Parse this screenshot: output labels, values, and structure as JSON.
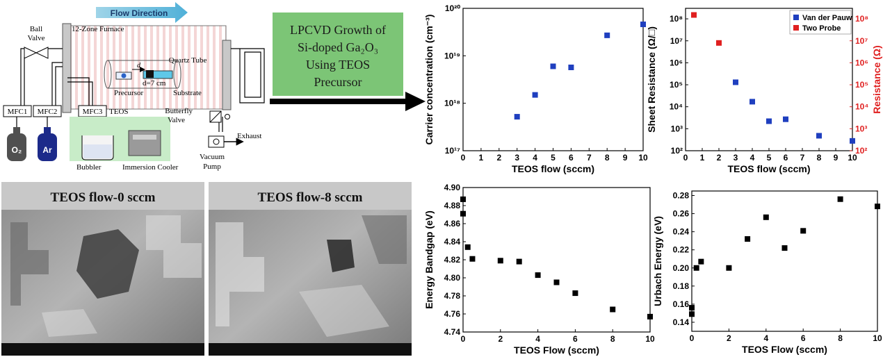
{
  "schematic": {
    "flow_direction": "Flow Direction",
    "furnace": "12-Zone Furnace",
    "quartz_tube": "Quartz Tube",
    "ball_valve_1": "Ball",
    "ball_valve_2": "Valve",
    "precursor": "Precursor",
    "substrate": "Substrate",
    "distance": "d=7 cm",
    "d_label": "d",
    "mfc1": "MFC1",
    "mfc2": "MFC2",
    "mfc3": "MFC3",
    "teos": "TEOS",
    "o2": "O₂",
    "ar": "Ar",
    "bubbler": "Bubbler",
    "immersion_cooler": "Immersion Cooler",
    "butterfly_1": "Butterfly",
    "butterfly_2": "Valve",
    "exhaust": "Exhaust",
    "vacuum_1": "Vacuum",
    "vacuum_2": "Pump"
  },
  "title_box": {
    "line1": "LPCVD Growth of",
    "line2": "Si-doped Ga₂O₃",
    "line3": "Using TEOS",
    "line4": "Precursor",
    "color": "#7cc576"
  },
  "sem": [
    {
      "label": "TEOS flow-0 sccm"
    },
    {
      "label": "TEOS flow-8 sccm"
    }
  ],
  "chart_data": [
    {
      "type": "scatter",
      "id": "carrier",
      "xlabel": "TEOS flow (sccm)",
      "ylabel": "Carrier concentration (cm⁻³)",
      "xlim": [
        0,
        10
      ],
      "ylim": [
        1e+17,
        1e+20
      ],
      "yscale": "log",
      "xticks": [
        "0",
        "1",
        "2",
        "3",
        "4",
        "5",
        "6",
        "7",
        "8",
        "9",
        "10"
      ],
      "yticks": [
        "10¹⁷",
        "10¹⁸",
        "10¹⁹",
        "10²⁰"
      ],
      "color": "#1f3fbf",
      "x": [
        3,
        4,
        5,
        6,
        8,
        10
      ],
      "y": [
        5.2e+17,
        1.5e+18,
        6e+18,
        5.7e+18,
        2.7e+19,
        4.6e+19
      ]
    },
    {
      "type": "scatter",
      "id": "resistance",
      "xlabel": "TEOS flow (sccm)",
      "ylabel": "Sheet Resistance (Ω/□)",
      "ylabel_right": "Resistance (Ω)",
      "xlim": [
        0,
        10
      ],
      "ylim": [
        100,
        300000000.0
      ],
      "yscale": "log",
      "xticks": [
        "0",
        "1",
        "2",
        "3",
        "4",
        "5",
        "6",
        "7",
        "8",
        "9",
        "10"
      ],
      "yticks": [
        "10²",
        "10³",
        "10⁴",
        "10⁵",
        "10⁶",
        "10⁷",
        "10⁸"
      ],
      "legend_position": "top-right",
      "series": [
        {
          "name": "Van der Pauw",
          "color": "#1f3fbf",
          "x": [
            3,
            4,
            5,
            6,
            8,
            10
          ],
          "y": [
            130000.0,
            17000.0,
            2200.0,
            2700.0,
            480.0,
            280.0
          ]
        },
        {
          "name": "Two Probe",
          "color": "#e02020",
          "x": [
            0.5,
            2
          ],
          "y": [
            150000000.0,
            8000000.0
          ]
        }
      ]
    },
    {
      "type": "scatter",
      "id": "bandgap",
      "xlabel": "TEOS Flow (sccm)",
      "ylabel": "Energy Bandgap (eV)",
      "xlim": [
        0,
        10
      ],
      "ylim": [
        4.74,
        4.9
      ],
      "xticks": [
        "0",
        "2",
        "4",
        "6",
        "8",
        "10"
      ],
      "yticks": [
        "4.74",
        "4.76",
        "4.78",
        "4.80",
        "4.82",
        "4.84",
        "4.86",
        "4.88",
        "4.90"
      ],
      "color": "#000000",
      "x": [
        0,
        0,
        0.25,
        0.5,
        2,
        3,
        4,
        5,
        6,
        8,
        10
      ],
      "y": [
        4.887,
        4.871,
        4.834,
        4.821,
        4.819,
        4.818,
        4.803,
        4.795,
        4.783,
        4.765,
        4.757
      ]
    },
    {
      "type": "scatter",
      "id": "urbach",
      "xlabel": "TEOS Flow (sccm)",
      "ylabel": "Urbach Energy (eV)",
      "xlim": [
        0,
        10
      ],
      "ylim": [
        0.13,
        0.285
      ],
      "xticks": [
        "0",
        "2",
        "4",
        "6",
        "8",
        "10"
      ],
      "yticks": [
        "0.14",
        "0.16",
        "0.18",
        "0.20",
        "0.22",
        "0.24",
        "0.26",
        "0.28"
      ],
      "color": "#000000",
      "x": [
        0,
        0,
        0.25,
        0.5,
        2,
        3,
        4,
        5,
        6,
        8,
        10
      ],
      "y": [
        0.156,
        0.149,
        0.2,
        0.207,
        0.2,
        0.232,
        0.256,
        0.222,
        0.241,
        0.276,
        0.268
      ]
    }
  ]
}
